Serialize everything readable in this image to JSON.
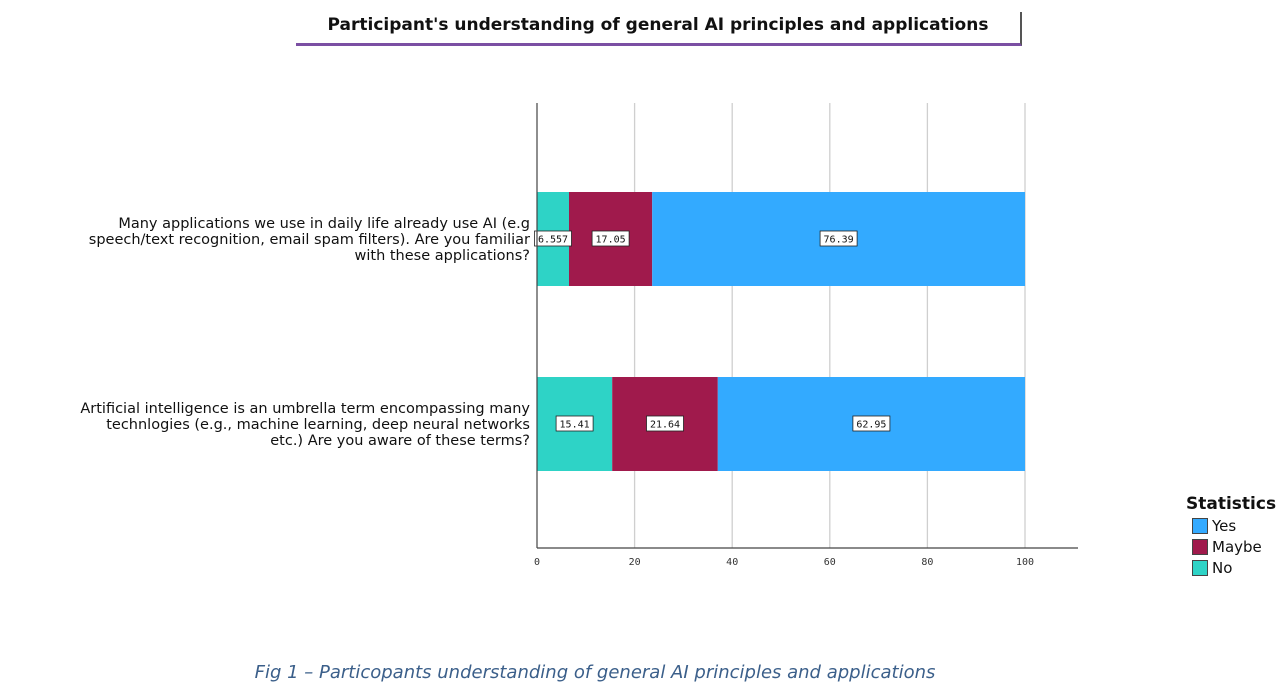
{
  "chart_data": {
    "type": "bar",
    "orientation": "horizontal",
    "stacked": true,
    "title": "Participant's understanding of general AI principles and applications",
    "categories": [
      [
        "Many applications we use in daily life already use AI (e.g",
        "speech/text recognition, email spam filters). Are you familiar",
        "with these applications?"
      ],
      [
        "Artificial intelligence is an umbrella term encompassing many",
        "technlogies (e.g., machine learning, deep neural networks",
        "etc.) Are you aware of these terms?"
      ]
    ],
    "series": [
      {
        "name": "No",
        "color": "#2ed3c6",
        "values": [
          6.557,
          15.41
        ],
        "labels": [
          "6.557",
          "15.41"
        ]
      },
      {
        "name": "Maybe",
        "color": "#a01a4c",
        "values": [
          17.05,
          21.64
        ],
        "labels": [
          "17.05",
          "21.64"
        ]
      },
      {
        "name": "Yes",
        "color": "#33aaff",
        "values": [
          76.39,
          62.95
        ],
        "labels": [
          "76.39",
          "62.95"
        ]
      }
    ],
    "xlim": [
      0,
      100
    ],
    "xticks": [
      "0",
      "20",
      "40",
      "60",
      "80",
      "100"
    ],
    "grid": true,
    "legend": {
      "title": "Statistics",
      "position": "bottom-right",
      "items": [
        {
          "label": "Yes",
          "color": "#33aaff"
        },
        {
          "label": "Maybe",
          "color": "#a01a4c"
        },
        {
          "label": "No",
          "color": "#2ed3c6"
        }
      ]
    }
  },
  "caption": "Fig 1 – Particopants understanding of general AI principles and applications"
}
